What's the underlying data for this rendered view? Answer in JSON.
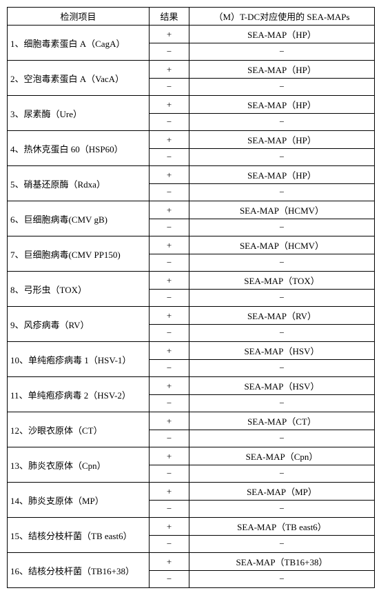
{
  "table": {
    "headers": [
      "检测项目",
      "结果",
      "（M）T-DC对应使用的 SEA-MAPs"
    ],
    "rows": [
      {
        "name": "1、细胞毒素蛋白 A（CagA）",
        "pos_result": "+",
        "pos_map": "SEA-MAP（HP）",
        "neg_result": "−",
        "neg_map": "−"
      },
      {
        "name": "2、空泡毒素蛋白 A（VacA）",
        "pos_result": "+",
        "pos_map": "SEA-MAP（HP）",
        "neg_result": "−",
        "neg_map": "−"
      },
      {
        "name": "3、尿素酶（Ure）",
        "pos_result": "+",
        "pos_map": "SEA-MAP（HP）",
        "neg_result": "−",
        "neg_map": "−"
      },
      {
        "name": "4、热休克蛋白 60（HSP60）",
        "pos_result": "+",
        "pos_map": "SEA-MAP（HP）",
        "neg_result": "−",
        "neg_map": "−"
      },
      {
        "name": "5、硝基还原酶（Rdxa）",
        "pos_result": "+",
        "pos_map": "SEA-MAP（HP）",
        "neg_result": "−",
        "neg_map": "−"
      },
      {
        "name": "6、巨细胞病毒(CMV gB)",
        "pos_result": "+",
        "pos_map": "SEA-MAP（HCMV）",
        "neg_result": "−",
        "neg_map": "−"
      },
      {
        "name": "7、巨细胞病毒(CMV PP150)",
        "pos_result": "+",
        "pos_map": "SEA-MAP（HCMV）",
        "neg_result": "−",
        "neg_map": "−"
      },
      {
        "name": "8、弓形虫（TOX）",
        "pos_result": "+",
        "pos_map": "SEA-MAP（TOX）",
        "neg_result": "−",
        "neg_map": "−"
      },
      {
        "name": "9、风疹病毒（RV）",
        "pos_result": "+",
        "pos_map": "SEA-MAP（RV）",
        "neg_result": "−",
        "neg_map": "−"
      },
      {
        "name": "10、单纯疱疹病毒 1（HSV-1）",
        "pos_result": "+",
        "pos_map": "SEA-MAP（HSV）",
        "neg_result": "−",
        "neg_map": "−"
      },
      {
        "name": "11、单纯疱疹病毒 2（HSV-2）",
        "pos_result": "+",
        "pos_map": "SEA-MAP（HSV）",
        "neg_result": "−",
        "neg_map": "−"
      },
      {
        "name": "12、沙眼衣原体（CT）",
        "pos_result": "+",
        "pos_map": "SEA-MAP（CT）",
        "neg_result": "−",
        "neg_map": "−"
      },
      {
        "name": "13、肺炎衣原体（Cpn）",
        "pos_result": "+",
        "pos_map": "SEA-MAP（Cpn）",
        "neg_result": "−",
        "neg_map": "−"
      },
      {
        "name": "14、肺炎支原体（MP）",
        "pos_result": "+",
        "pos_map": "SEA-MAP（MP）",
        "neg_result": "−",
        "neg_map": "−"
      },
      {
        "name": "15、结核分枝杆菌（TB east6）",
        "pos_result": "+",
        "pos_map": "SEA-MAP（TB east6）",
        "neg_result": "−",
        "neg_map": "−"
      },
      {
        "name": "16、结核分枝杆菌（TB16+38）",
        "pos_result": "+",
        "pos_map": "SEA-MAP（TB16+38）",
        "neg_result": "−",
        "neg_map": "−"
      }
    ]
  }
}
